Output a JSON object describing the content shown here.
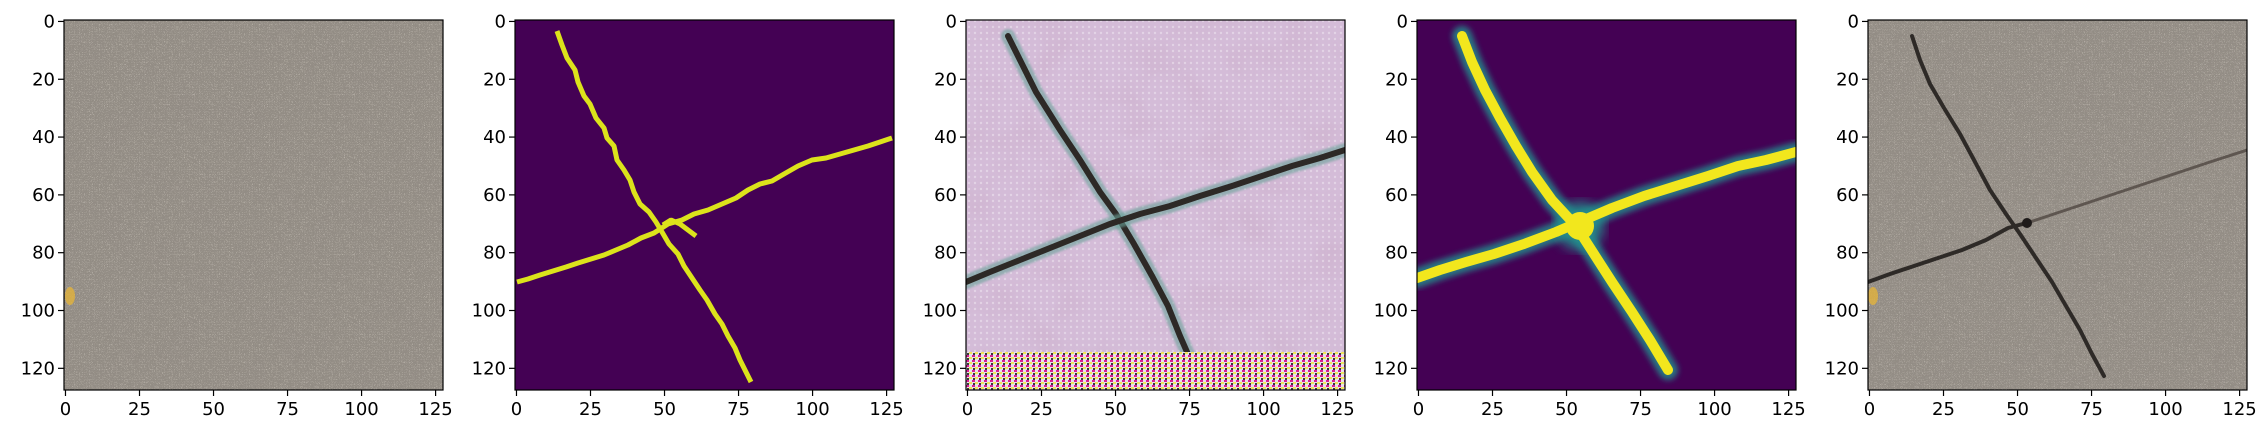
{
  "figure": {
    "panels": [
      {
        "kind": "input-texture",
        "xticks": [
          "0",
          "25",
          "50",
          "75",
          "100",
          "125"
        ],
        "yticks": [
          "0",
          "20",
          "40",
          "60",
          "80",
          "100",
          "120"
        ]
      },
      {
        "kind": "binary-mask",
        "xticks": [
          "0",
          "25",
          "50",
          "75",
          "100",
          "125"
        ],
        "yticks": [
          "0",
          "20",
          "40",
          "60",
          "80",
          "100",
          "120"
        ]
      },
      {
        "kind": "generated-crack",
        "xticks": [
          "0",
          "25",
          "50",
          "75",
          "100",
          "125"
        ],
        "yticks": [
          "0",
          "20",
          "40",
          "60",
          "80",
          "100",
          "120"
        ]
      },
      {
        "kind": "smooth-mask",
        "xticks": [
          "0",
          "25",
          "50",
          "75",
          "100",
          "125"
        ],
        "yticks": [
          "0",
          "20",
          "40",
          "60",
          "80",
          "100",
          "120"
        ]
      },
      {
        "kind": "composite",
        "xticks": [
          "0",
          "25",
          "50",
          "75",
          "100",
          "125"
        ],
        "yticks": [
          "0",
          "20",
          "40",
          "60",
          "80",
          "100",
          "120"
        ]
      }
    ],
    "colors": {
      "mask_bg": "#440154",
      "mask_fg": "#dce31b",
      "concrete": "#c9c2b8",
      "crack_dark": "#2e2a27"
    }
  }
}
